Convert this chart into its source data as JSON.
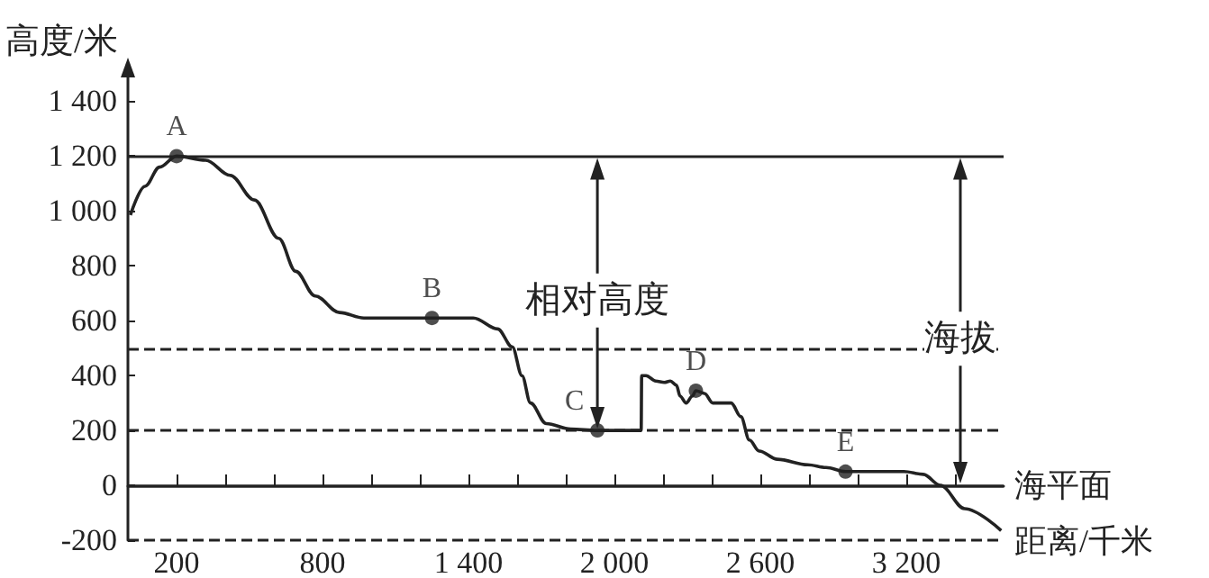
{
  "chart_data": {
    "type": "line",
    "xlabel": "距离/千米",
    "ylabel": "高度/米",
    "xlim": [
      0,
      3600
    ],
    "ylim": [
      -200,
      1500
    ],
    "xticks": [
      {
        "value": 200,
        "label": "200"
      },
      {
        "value": 400,
        "label": null
      },
      {
        "value": 600,
        "label": null
      },
      {
        "value": 800,
        "label": "800"
      },
      {
        "value": 1000,
        "label": null
      },
      {
        "value": 1200,
        "label": null
      },
      {
        "value": 1400,
        "label": "1 400"
      },
      {
        "value": 1600,
        "label": null
      },
      {
        "value": 1800,
        "label": null
      },
      {
        "value": 2000,
        "label": "2 000"
      },
      {
        "value": 2200,
        "label": null
      },
      {
        "value": 2400,
        "label": null
      },
      {
        "value": 2600,
        "label": "2 600"
      },
      {
        "value": 2800,
        "label": null
      },
      {
        "value": 3000,
        "label": null
      },
      {
        "value": 3200,
        "label": "3 200"
      },
      {
        "value": 3400,
        "label": null
      }
    ],
    "yticks": [
      {
        "value": -200,
        "label": "-200"
      },
      {
        "value": 0,
        "label": "0"
      },
      {
        "value": 200,
        "label": "200"
      },
      {
        "value": 400,
        "label": "400"
      },
      {
        "value": 600,
        "label": "600"
      },
      {
        "value": 800,
        "label": "800"
      },
      {
        "value": 1000,
        "label": "1 000"
      },
      {
        "value": 1200,
        "label": "1 200"
      },
      {
        "value": 1400,
        "label": "1 400"
      }
    ],
    "series": [
      {
        "color": "#222222",
        "marker": "none",
        "x": [
          10,
          70,
          130,
          200,
          320,
          420,
          520,
          620,
          690,
          770,
          870,
          970,
          1250,
          1420,
          1520,
          1580,
          1620,
          1655,
          1720,
          1820,
          1930,
          2110,
          2112,
          2130,
          2170,
          2205,
          2230,
          2255,
          2270,
          2295,
          2320,
          2335,
          2370,
          2405,
          2455,
          2480,
          2520,
          2555,
          2595,
          2670,
          2795,
          2870,
          2950,
          3190,
          3270,
          3340,
          3440,
          3590
        ],
        "values": [
          985,
          1090,
          1160,
          1200,
          1185,
          1130,
          1040,
          900,
          780,
          690,
          630,
          610,
          610,
          610,
          570,
          505,
          400,
          300,
          225,
          205,
          200,
          200,
          400,
          400,
          380,
          375,
          380,
          365,
          325,
          300,
          325,
          345,
          335,
          300,
          300,
          300,
          250,
          165,
          125,
          95,
          75,
          65,
          50,
          50,
          40,
          0,
          -85,
          -165
        ]
      },
      {
        "type": "scatter",
        "marker": "circle",
        "color": "#222222",
        "x": [
          200,
          1250,
          1930,
          2335,
          2950
        ],
        "values": [
          1200,
          610,
          200,
          345,
          50
        ],
        "value_labels": [
          "A",
          "B",
          "C",
          "D",
          "E"
        ]
      }
    ],
    "ref_lines": [
      {
        "axis": "y",
        "value": 1200,
        "label": null,
        "line_style": "solid"
      },
      {
        "axis": "y",
        "value": 500,
        "label": null,
        "line_style": "dashed"
      },
      {
        "axis": "y",
        "value": 200,
        "label": null,
        "line_style": "dashed"
      },
      {
        "axis": "y",
        "value": 0,
        "label": "海平面",
        "line_style": "solid"
      },
      {
        "axis": "y",
        "value": -200,
        "label": null,
        "line_style": "dashed"
      }
    ],
    "annotations": [
      "相对高度",
      "海拔"
    ],
    "grid": false
  }
}
